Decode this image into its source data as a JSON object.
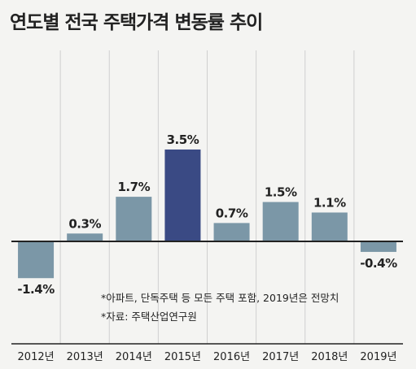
{
  "chart_data": {
    "type": "bar",
    "title": "연도별 전국 주택가격 변동률 추이",
    "categories": [
      "2012년",
      "2013년",
      "2014년",
      "2015년",
      "2016년",
      "2017년",
      "2018년",
      "2019년"
    ],
    "values": [
      -1.4,
      0.3,
      1.7,
      3.5,
      0.7,
      1.5,
      1.1,
      -0.4
    ],
    "value_labels": [
      "-1.4%",
      "0.3%",
      "1.7%",
      "3.5%",
      "0.7%",
      "1.5%",
      "1.1%",
      "-0.4%"
    ],
    "highlight_category": "2015년",
    "ylim": [
      -1.6,
      3.7
    ],
    "grid": "vertical separators",
    "notes": [
      "*아파트, 단독주택 등 모든 주택 포함, 2019년은 전망치",
      "*자료: 주택산업연구원"
    ],
    "colors": {
      "bar": "#7b97a7",
      "highlight": "#3a4a84",
      "axis": "#222222",
      "grid": "#cfcfcf"
    }
  }
}
